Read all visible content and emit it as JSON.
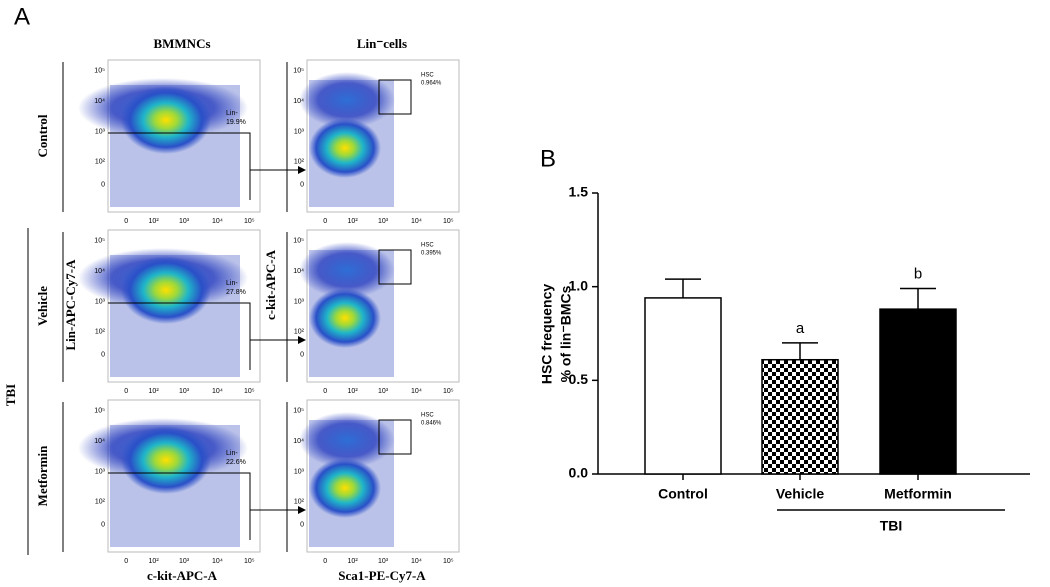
{
  "panel_a": {
    "label": "A",
    "col_titles": [
      "BMMNCs",
      "Lin⁻cells"
    ],
    "row_labels": [
      "Control",
      "Vehicle",
      "Metformin"
    ],
    "group_label": "TBI",
    "y_axis_left": "Lin-APC-Cy7-A",
    "y_axis_right": "c-kit-APC-A",
    "x_axis_left": "c-kit-APC-A",
    "x_axis_right": "Sca1-PE-Cy7-A",
    "tick_labels": [
      "0",
      "10²",
      "10³",
      "10⁴",
      "10⁵"
    ],
    "lin_gate": {
      "name": "Lin-",
      "values": [
        "19.9%",
        "27.8%",
        "22.6%"
      ]
    },
    "hsc_gate": {
      "name": "HSC",
      "values": [
        "0.964%",
        "0.395%",
        "0.846%"
      ]
    }
  },
  "chart_data": {
    "type": "bar",
    "panel_label": "B",
    "y_label": [
      "HSC frequency",
      "% of lin⁻BMCs"
    ],
    "categories": [
      "Control",
      "Vehicle",
      "Metformin"
    ],
    "values": [
      0.94,
      0.61,
      0.88
    ],
    "errors": [
      0.1,
      0.09,
      0.11
    ],
    "colors": [
      "#ffffff",
      "checker",
      "#000000"
    ],
    "annotations": [
      null,
      "a",
      "b"
    ],
    "group_label": "TBI",
    "ylim": [
      0,
      1.5
    ],
    "yticks": [
      {
        "value": 0,
        "label": "0.0"
      },
      {
        "value": 0.5,
        "label": "0.5"
      },
      {
        "value": 1,
        "label": "1.0"
      },
      {
        "value": 1.5,
        "label": "1.5"
      }
    ]
  }
}
